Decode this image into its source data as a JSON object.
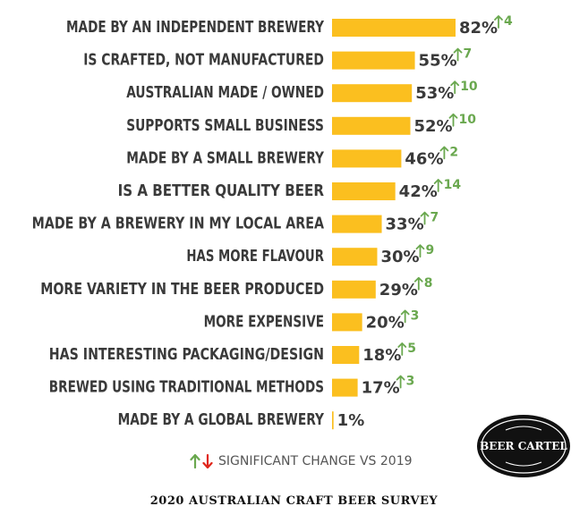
{
  "chart_data": {
    "type": "bar",
    "orientation": "horizontal",
    "categories": [
      "MADE BY AN INDEPENDENT BREWERY",
      "IS CRAFTED, NOT MANUFACTURED",
      "AUSTRALIAN MADE / OWNED",
      "SUPPORTS SMALL BUSINESS",
      "MADE BY A SMALL BREWERY",
      "IS A BETTER QUALITY BEER",
      "MADE BY A BREWERY IN MY LOCAL AREA",
      "HAS MORE FLAVOUR",
      "MORE VARIETY IN THE BEER PRODUCED",
      "MORE EXPENSIVE",
      "HAS INTERESTING PACKAGING/DESIGN",
      "BREWED USING TRADITIONAL METHODS",
      "MADE BY A GLOBAL BREWERY"
    ],
    "values": [
      82,
      55,
      53,
      52,
      46,
      42,
      33,
      30,
      29,
      20,
      18,
      17,
      1
    ],
    "value_labels": [
      "82%",
      "55%",
      "53%",
      "52%",
      "46%",
      "42%",
      "33%",
      "30%",
      "29%",
      "20%",
      "18%",
      "17%",
      "1%"
    ],
    "changes": [
      "4",
      "7",
      "10",
      "10",
      "2",
      "14",
      "7",
      "9",
      "8",
      "3",
      "5",
      "3",
      null
    ],
    "change_direction": [
      "up",
      "up",
      "up",
      "up",
      "up",
      "up",
      "up",
      "up",
      "up",
      "up",
      "up",
      "up",
      null
    ],
    "xlim": [
      0,
      100
    ],
    "grid": false,
    "legend_position": "bottom-center"
  },
  "legend": {
    "text": "SIGNIFICANT CHANGE VS 2019"
  },
  "footer": {
    "text": "2020 AUSTRALIAN CRAFT BEER SURVEY"
  },
  "logo": {
    "text": "BEER CARTEL"
  },
  "colors": {
    "bar": "#fbbf1f",
    "text": "#3a3a3a",
    "up_arrow": "#6aa84f",
    "down_arrow": "#e0271b",
    "logo_bg": "#111111"
  },
  "icons": {
    "increase": "arrow-up-icon",
    "decrease": "arrow-down-icon"
  }
}
